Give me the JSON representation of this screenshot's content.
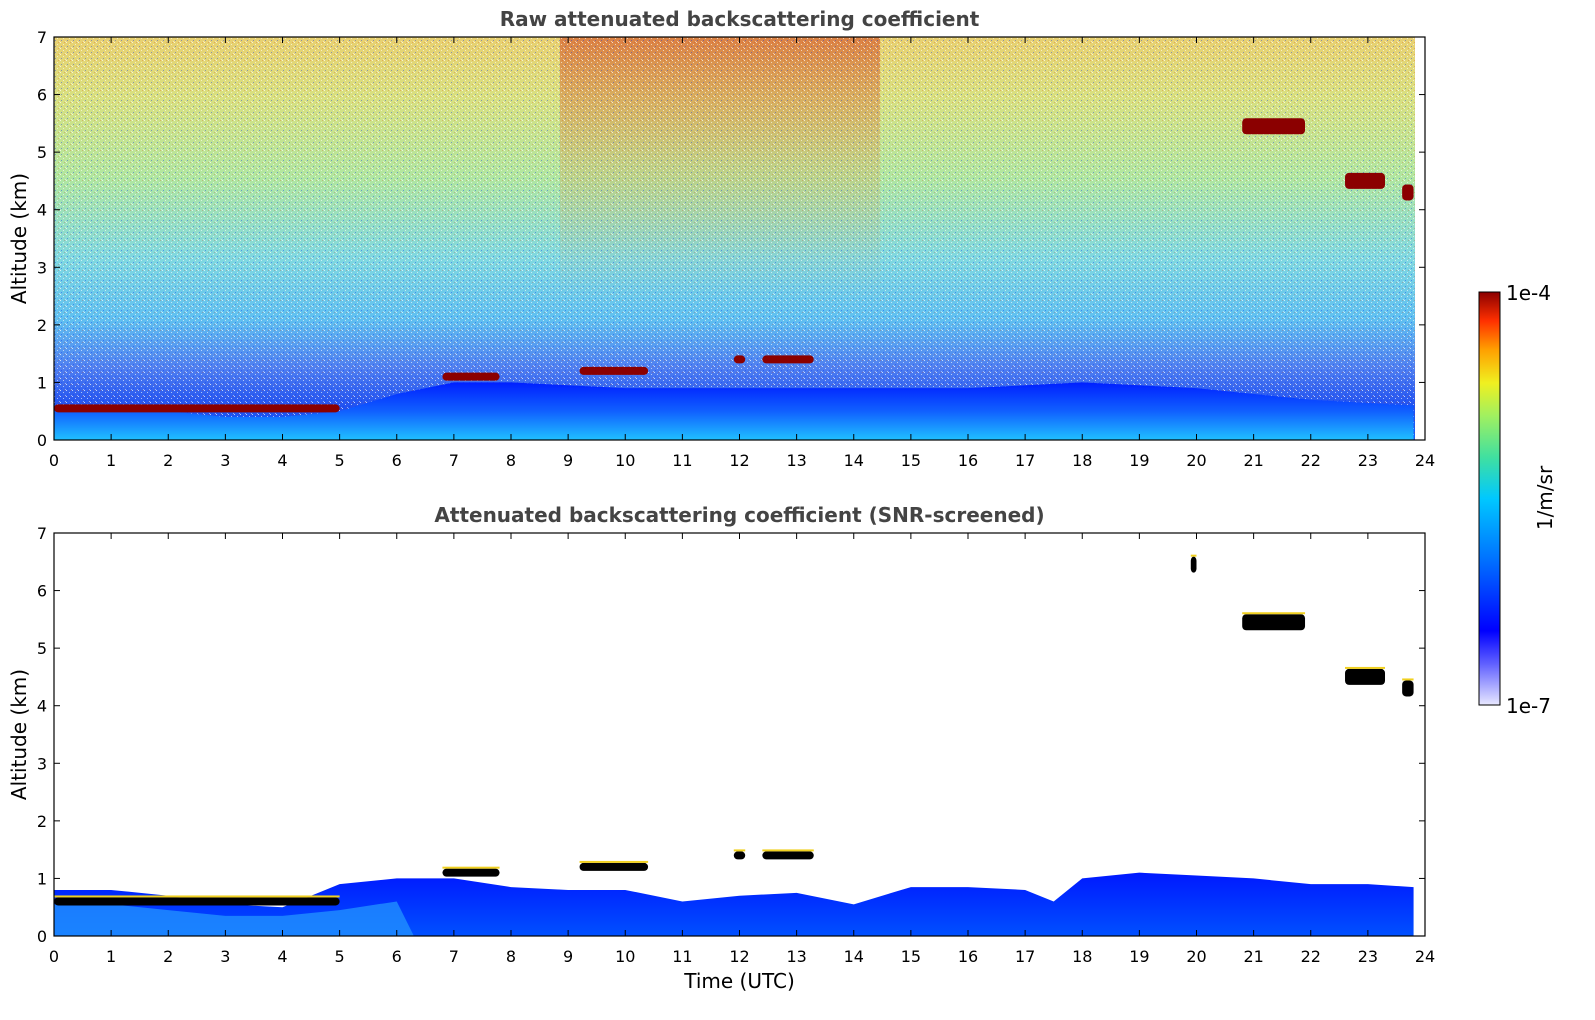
{
  "colors": {
    "background": "#ffffff",
    "title": "#444444",
    "cloud_layer": "#8b0000",
    "screened_cloud_core": "#000000",
    "colormap_stops": [
      "#e8e8ff",
      "#0000ff",
      "#0070ff",
      "#00c8ff",
      "#40e0a0",
      "#a0f060",
      "#f0f020",
      "#ffa000",
      "#ff3000",
      "#8b0000"
    ]
  },
  "colorbar": {
    "max_label": "1e-4",
    "min_label": "1e-7",
    "unit_label": "1/m/sr",
    "scale": "log"
  },
  "chart_data": [
    {
      "type": "heatmap",
      "title": "Raw attenuated backscattering coefficient",
      "xlabel": "",
      "ylabel": "Altitude (km)",
      "xlim": [
        0,
        24
      ],
      "ylim": [
        0,
        7
      ],
      "xticks": [
        "0",
        "1",
        "2",
        "3",
        "4",
        "5",
        "6",
        "7",
        "8",
        "9",
        "10",
        "11",
        "12",
        "13",
        "14",
        "15",
        "16",
        "17",
        "18",
        "19",
        "20",
        "21",
        "22",
        "23",
        "24"
      ],
      "yticks": [
        "0",
        "1",
        "2",
        "3",
        "4",
        "5",
        "6",
        "7"
      ],
      "colorbar_range": [
        1e-07,
        0.0001
      ],
      "boundary_layer_top_km": {
        "x": [
          0,
          1,
          2,
          3,
          4,
          5,
          6,
          7,
          8,
          10,
          12,
          14,
          16,
          18,
          20,
          22,
          23.8
        ],
        "y": [
          0.6,
          0.6,
          0.5,
          0.4,
          0.4,
          0.5,
          0.8,
          1.0,
          1.0,
          0.9,
          0.9,
          0.9,
          0.9,
          1.0,
          0.9,
          0.7,
          0.6
        ]
      },
      "cloud_features": [
        {
          "x_start": 0.0,
          "x_end": 5.0,
          "y_km": 0.55
        },
        {
          "x_start": 6.8,
          "x_end": 7.8,
          "y_km": 1.1
        },
        {
          "x_start": 9.2,
          "x_end": 10.4,
          "y_km": 1.2
        },
        {
          "x_start": 11.9,
          "x_end": 12.1,
          "y_km": 1.4
        },
        {
          "x_start": 12.4,
          "x_end": 13.3,
          "y_km": 1.4
        },
        {
          "x_start": 20.8,
          "x_end": 21.9,
          "y_km": 5.45
        },
        {
          "x_start": 22.6,
          "x_end": 23.3,
          "y_km": 4.5
        },
        {
          "x_start": 23.6,
          "x_end": 23.8,
          "y_km": 4.3
        }
      ]
    },
    {
      "type": "heatmap",
      "title": "Attenuated backscattering coefficient (SNR-screened)",
      "xlabel": "Time (UTC)",
      "ylabel": "Altitude (km)",
      "xlim": [
        0,
        24
      ],
      "ylim": [
        0,
        7
      ],
      "xticks": [
        "0",
        "1",
        "2",
        "3",
        "4",
        "5",
        "6",
        "7",
        "8",
        "9",
        "10",
        "11",
        "12",
        "13",
        "14",
        "15",
        "16",
        "17",
        "18",
        "19",
        "20",
        "21",
        "22",
        "23",
        "24"
      ],
      "yticks": [
        "0",
        "1",
        "2",
        "3",
        "4",
        "5",
        "6",
        "7"
      ],
      "colorbar_range": [
        1e-07,
        0.0001
      ],
      "boundary_layer_top_km": {
        "x": [
          0,
          1,
          2,
          3,
          4,
          4.5,
          5,
          6,
          7,
          8,
          9,
          10,
          11,
          12,
          13,
          14,
          15,
          16,
          17,
          17.5,
          18,
          19,
          20,
          21,
          22,
          23,
          23.8
        ],
        "y": [
          0.8,
          0.8,
          0.7,
          0.55,
          0.5,
          0.7,
          0.9,
          1.0,
          1.0,
          0.85,
          0.8,
          0.8,
          0.6,
          0.7,
          0.75,
          0.55,
          0.85,
          0.85,
          0.8,
          0.6,
          1.0,
          1.1,
          1.05,
          1.0,
          0.9,
          0.9,
          0.85
        ]
      },
      "cloud_features": [
        {
          "x_start": 0.0,
          "x_end": 5.0,
          "y_km": 0.6
        },
        {
          "x_start": 6.8,
          "x_end": 7.8,
          "y_km": 1.1
        },
        {
          "x_start": 9.2,
          "x_end": 10.4,
          "y_km": 1.2
        },
        {
          "x_start": 11.9,
          "x_end": 12.1,
          "y_km": 1.4
        },
        {
          "x_start": 12.4,
          "x_end": 13.3,
          "y_km": 1.4
        },
        {
          "x_start": 20.8,
          "x_end": 21.9,
          "y_km": 5.45
        },
        {
          "x_start": 22.6,
          "x_end": 23.3,
          "y_km": 4.5
        },
        {
          "x_start": 23.6,
          "x_end": 23.8,
          "y_km": 4.3
        },
        {
          "x_start": 19.9,
          "x_end": 20.0,
          "y_km": 6.45
        }
      ]
    }
  ]
}
